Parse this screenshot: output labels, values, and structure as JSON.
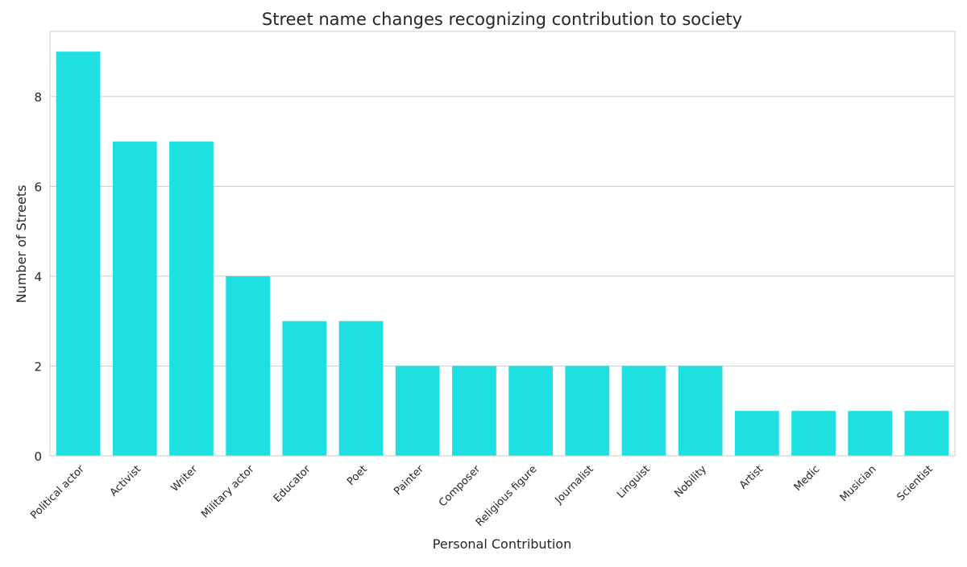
{
  "chart_data": {
    "type": "bar",
    "title": "Street name changes recognizing contribution to society",
    "xlabel": "Personal Contribution",
    "ylabel": "Number of Streets",
    "categories": [
      "Political actor",
      "Activist",
      "Writer",
      "Military actor",
      "Educator",
      "Poet",
      "Painter",
      "Composer",
      "Religious figure",
      "Journalist",
      "Linguist",
      "Nobility",
      "Artist",
      "Medic",
      "Musician",
      "Scientist"
    ],
    "values": [
      9,
      7,
      7,
      4,
      3,
      3,
      2,
      2,
      2,
      2,
      2,
      2,
      1,
      1,
      1,
      1
    ],
    "ylim": [
      0,
      9.45
    ],
    "yticks": [
      0,
      2,
      4,
      6,
      8
    ],
    "grid": "y",
    "bar_color": "#1fe0e0",
    "grid_color": "#cccccc",
    "frame_color": "#cccccc",
    "text_color": "#262626"
  }
}
